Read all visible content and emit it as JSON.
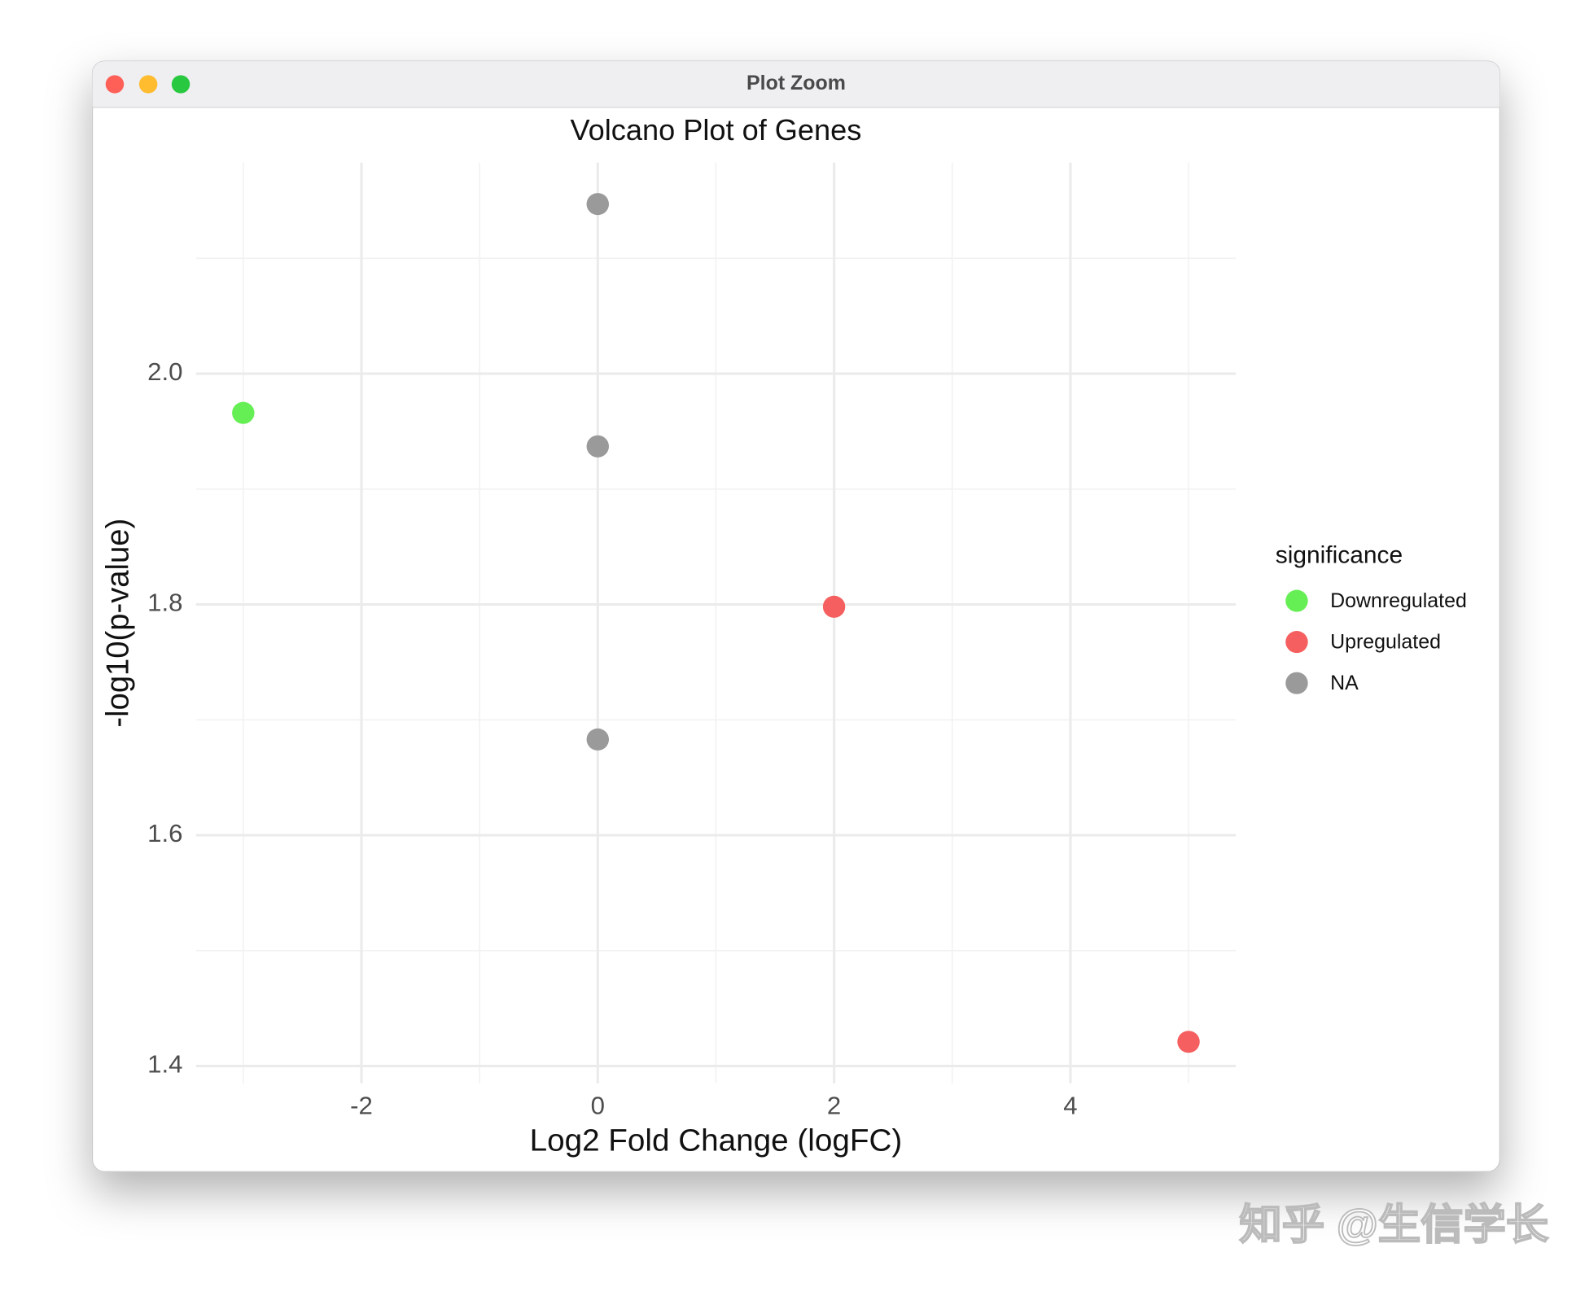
{
  "window_title": "Plot Zoom",
  "watermark": "知乎 @生信学长",
  "chart_data": {
    "type": "scatter",
    "title": "Volcano Plot of Genes",
    "x_label": "Log2 Fold Change (logFC)",
    "y_label": "-log10(p-value)",
    "legend_title": "significance",
    "legend": "right",
    "series": [
      {
        "name": "Downregulated",
        "color": "#66ee55",
        "x": [
          -3
        ],
        "values": [
          1.966
        ]
      },
      {
        "name": "Upregulated",
        "color": "#f55f5f",
        "x": [
          2,
          5
        ],
        "values": [
          1.798,
          1.421
        ]
      },
      {
        "name": "NA",
        "color": "#9a9a9a",
        "x": [
          0,
          0,
          0
        ],
        "values": [
          2.147,
          1.937,
          1.683
        ]
      }
    ],
    "xlim": [
      -3.4,
      5.4
    ],
    "xticks": [
      -2,
      0,
      2,
      4
    ],
    "xminor": [
      -3,
      -1,
      1,
      3,
      5
    ],
    "ylim": [
      1.385,
      2.183
    ],
    "yticks": [
      {
        "value": 1.4,
        "label": "1.4"
      },
      {
        "value": 1.6,
        "label": "1.6"
      },
      {
        "value": 1.8,
        "label": "1.8"
      },
      {
        "value": 2.0,
        "label": "2.0"
      }
    ],
    "yminor": [
      1.5,
      1.7,
      1.9,
      2.1
    ],
    "grid": true
  }
}
